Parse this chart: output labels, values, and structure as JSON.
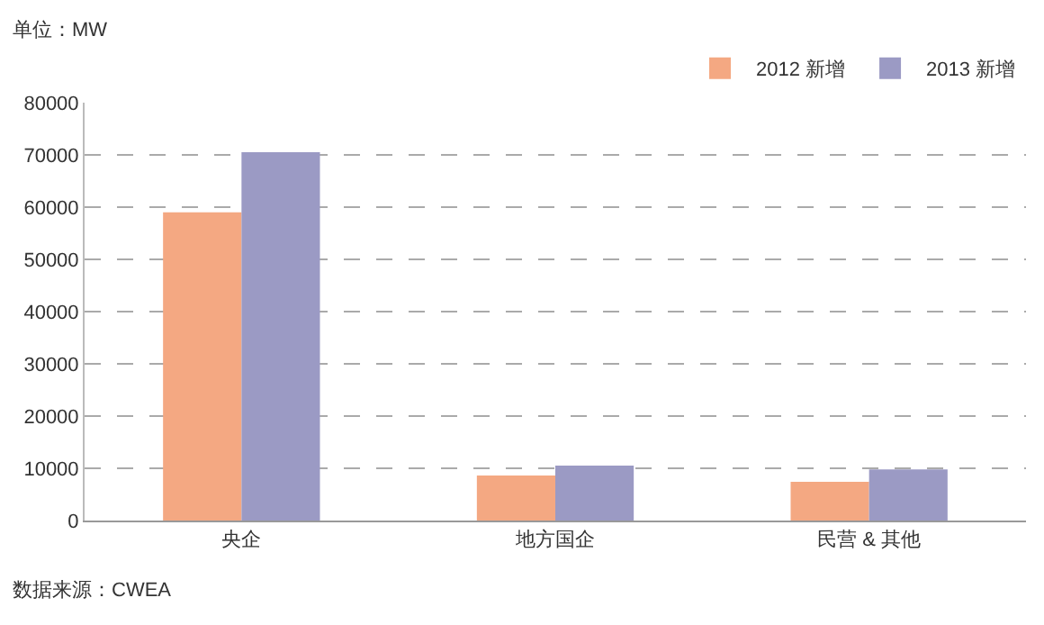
{
  "chart_data": {
    "type": "bar",
    "categories": [
      "央企",
      "地方国企",
      "民营 & 其他"
    ],
    "series": [
      {
        "name": "2012 新增",
        "color": "#f4a882",
        "values": [
          59000,
          8600,
          7400
        ]
      },
      {
        "name": "2013 新增",
        "color": "#9b9ac4",
        "values": [
          70500,
          10500,
          9800
        ]
      }
    ],
    "ylim": [
      0,
      80000
    ],
    "yticks": [
      0,
      10000,
      20000,
      30000,
      40000,
      50000,
      60000,
      70000,
      80000
    ],
    "grid": "y",
    "legend": "top right",
    "annotations": [
      "单位：MW",
      "数据来源：CWEA"
    ]
  }
}
